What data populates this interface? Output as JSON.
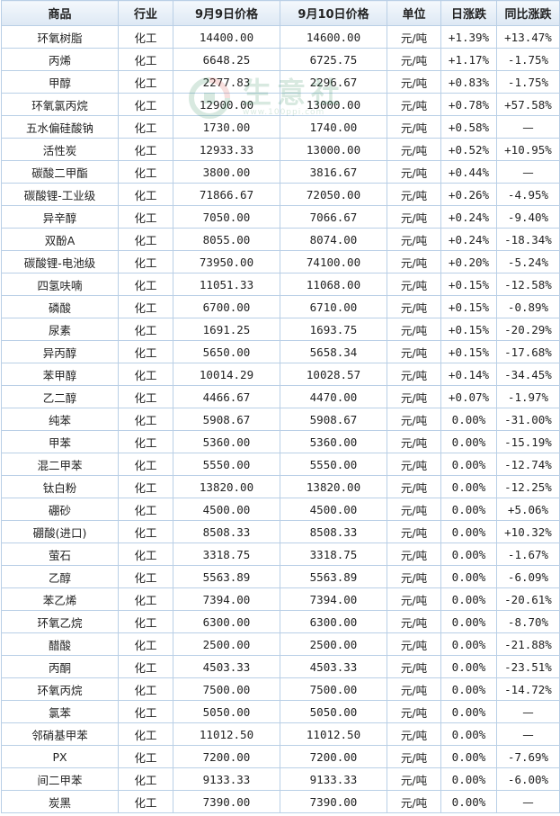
{
  "table": {
    "headers": {
      "name": "商品",
      "industry": "行业",
      "price_prev": "9月9日价格",
      "price_curr": "9月10日价格",
      "unit": "单位",
      "daily_change": "日涨跌",
      "yoy_change": "同比涨跌"
    },
    "rows": [
      {
        "name": "环氧树脂",
        "industry": "化工",
        "prev": "14400.00",
        "curr": "14600.00",
        "unit": "元/吨",
        "daily": "+1.39%",
        "daily_dir": "up",
        "yoy": "+13.47%",
        "yoy_dir": "up"
      },
      {
        "name": "丙烯",
        "industry": "化工",
        "prev": "6648.25",
        "curr": "6725.75",
        "unit": "元/吨",
        "daily": "+1.17%",
        "daily_dir": "up",
        "yoy": "-1.75%",
        "yoy_dir": "down"
      },
      {
        "name": "甲醇",
        "industry": "化工",
        "prev": "2277.83",
        "curr": "2296.67",
        "unit": "元/吨",
        "daily": "+0.83%",
        "daily_dir": "up",
        "yoy": "-1.75%",
        "yoy_dir": "down"
      },
      {
        "name": "环氧氯丙烷",
        "industry": "化工",
        "prev": "12900.00",
        "curr": "13000.00",
        "unit": "元/吨",
        "daily": "+0.78%",
        "daily_dir": "up",
        "yoy": "+57.58%",
        "yoy_dir": "up"
      },
      {
        "name": "五水偏硅酸钠",
        "industry": "化工",
        "prev": "1730.00",
        "curr": "1740.00",
        "unit": "元/吨",
        "daily": "+0.58%",
        "daily_dir": "up",
        "yoy": "—",
        "yoy_dir": "none"
      },
      {
        "name": "活性炭",
        "industry": "化工",
        "prev": "12933.33",
        "curr": "13000.00",
        "unit": "元/吨",
        "daily": "+0.52%",
        "daily_dir": "up",
        "yoy": "+10.95%",
        "yoy_dir": "up"
      },
      {
        "name": "碳酸二甲酯",
        "industry": "化工",
        "prev": "3800.00",
        "curr": "3816.67",
        "unit": "元/吨",
        "daily": "+0.44%",
        "daily_dir": "up",
        "yoy": "—",
        "yoy_dir": "none"
      },
      {
        "name": "碳酸锂-工业级",
        "industry": "化工",
        "prev": "71866.67",
        "curr": "72050.00",
        "unit": "元/吨",
        "daily": "+0.26%",
        "daily_dir": "up",
        "yoy": "-4.95%",
        "yoy_dir": "down"
      },
      {
        "name": "异辛醇",
        "industry": "化工",
        "prev": "7050.00",
        "curr": "7066.67",
        "unit": "元/吨",
        "daily": "+0.24%",
        "daily_dir": "up",
        "yoy": "-9.40%",
        "yoy_dir": "down"
      },
      {
        "name": "双酚A",
        "industry": "化工",
        "prev": "8055.00",
        "curr": "8074.00",
        "unit": "元/吨",
        "daily": "+0.24%",
        "daily_dir": "up",
        "yoy": "-18.34%",
        "yoy_dir": "down"
      },
      {
        "name": "碳酸锂-电池级",
        "industry": "化工",
        "prev": "73950.00",
        "curr": "74100.00",
        "unit": "元/吨",
        "daily": "+0.20%",
        "daily_dir": "up",
        "yoy": "-5.24%",
        "yoy_dir": "down"
      },
      {
        "name": "四氢呋喃",
        "industry": "化工",
        "prev": "11051.33",
        "curr": "11068.00",
        "unit": "元/吨",
        "daily": "+0.15%",
        "daily_dir": "up",
        "yoy": "-12.58%",
        "yoy_dir": "down"
      },
      {
        "name": "磷酸",
        "industry": "化工",
        "prev": "6700.00",
        "curr": "6710.00",
        "unit": "元/吨",
        "daily": "+0.15%",
        "daily_dir": "up",
        "yoy": "-0.89%",
        "yoy_dir": "down"
      },
      {
        "name": "尿素",
        "industry": "化工",
        "prev": "1691.25",
        "curr": "1693.75",
        "unit": "元/吨",
        "daily": "+0.15%",
        "daily_dir": "up",
        "yoy": "-20.29%",
        "yoy_dir": "down"
      },
      {
        "name": "异丙醇",
        "industry": "化工",
        "prev": "5650.00",
        "curr": "5658.34",
        "unit": "元/吨",
        "daily": "+0.15%",
        "daily_dir": "up",
        "yoy": "-17.68%",
        "yoy_dir": "down"
      },
      {
        "name": "苯甲醇",
        "industry": "化工",
        "prev": "10014.29",
        "curr": "10028.57",
        "unit": "元/吨",
        "daily": "+0.14%",
        "daily_dir": "up",
        "yoy": "-34.45%",
        "yoy_dir": "down"
      },
      {
        "name": "乙二醇",
        "industry": "化工",
        "prev": "4466.67",
        "curr": "4470.00",
        "unit": "元/吨",
        "daily": "+0.07%",
        "daily_dir": "up",
        "yoy": "-1.97%",
        "yoy_dir": "down"
      },
      {
        "name": "纯苯",
        "industry": "化工",
        "prev": "5908.67",
        "curr": "5908.67",
        "unit": "元/吨",
        "daily": "0.00%",
        "daily_dir": "flat",
        "yoy": "-31.00%",
        "yoy_dir": "down"
      },
      {
        "name": "甲苯",
        "industry": "化工",
        "prev": "5360.00",
        "curr": "5360.00",
        "unit": "元/吨",
        "daily": "0.00%",
        "daily_dir": "flat",
        "yoy": "-15.19%",
        "yoy_dir": "down"
      },
      {
        "name": "混二甲苯",
        "industry": "化工",
        "prev": "5550.00",
        "curr": "5550.00",
        "unit": "元/吨",
        "daily": "0.00%",
        "daily_dir": "flat",
        "yoy": "-12.74%",
        "yoy_dir": "down"
      },
      {
        "name": "钛白粉",
        "industry": "化工",
        "prev": "13820.00",
        "curr": "13820.00",
        "unit": "元/吨",
        "daily": "0.00%",
        "daily_dir": "flat",
        "yoy": "-12.25%",
        "yoy_dir": "down"
      },
      {
        "name": "硼砂",
        "industry": "化工",
        "prev": "4500.00",
        "curr": "4500.00",
        "unit": "元/吨",
        "daily": "0.00%",
        "daily_dir": "flat",
        "yoy": "+5.06%",
        "yoy_dir": "up"
      },
      {
        "name": "硼酸(进口)",
        "industry": "化工",
        "prev": "8508.33",
        "curr": "8508.33",
        "unit": "元/吨",
        "daily": "0.00%",
        "daily_dir": "flat",
        "yoy": "+10.32%",
        "yoy_dir": "up"
      },
      {
        "name": "萤石",
        "industry": "化工",
        "prev": "3318.75",
        "curr": "3318.75",
        "unit": "元/吨",
        "daily": "0.00%",
        "daily_dir": "flat",
        "yoy": "-1.67%",
        "yoy_dir": "down"
      },
      {
        "name": "乙醇",
        "industry": "化工",
        "prev": "5563.89",
        "curr": "5563.89",
        "unit": "元/吨",
        "daily": "0.00%",
        "daily_dir": "flat",
        "yoy": "-6.09%",
        "yoy_dir": "down"
      },
      {
        "name": "苯乙烯",
        "industry": "化工",
        "prev": "7394.00",
        "curr": "7394.00",
        "unit": "元/吨",
        "daily": "0.00%",
        "daily_dir": "flat",
        "yoy": "-20.61%",
        "yoy_dir": "down"
      },
      {
        "name": "环氧乙烷",
        "industry": "化工",
        "prev": "6300.00",
        "curr": "6300.00",
        "unit": "元/吨",
        "daily": "0.00%",
        "daily_dir": "flat",
        "yoy": "-8.70%",
        "yoy_dir": "down"
      },
      {
        "name": "醋酸",
        "industry": "化工",
        "prev": "2500.00",
        "curr": "2500.00",
        "unit": "元/吨",
        "daily": "0.00%",
        "daily_dir": "flat",
        "yoy": "-21.88%",
        "yoy_dir": "down"
      },
      {
        "name": "丙酮",
        "industry": "化工",
        "prev": "4503.33",
        "curr": "4503.33",
        "unit": "元/吨",
        "daily": "0.00%",
        "daily_dir": "flat",
        "yoy": "-23.51%",
        "yoy_dir": "down"
      },
      {
        "name": "环氧丙烷",
        "industry": "化工",
        "prev": "7500.00",
        "curr": "7500.00",
        "unit": "元/吨",
        "daily": "0.00%",
        "daily_dir": "flat",
        "yoy": "-14.72%",
        "yoy_dir": "down"
      },
      {
        "name": "氯苯",
        "industry": "化工",
        "prev": "5050.00",
        "curr": "5050.00",
        "unit": "元/吨",
        "daily": "0.00%",
        "daily_dir": "flat",
        "yoy": "—",
        "yoy_dir": "none"
      },
      {
        "name": "邻硝基甲苯",
        "industry": "化工",
        "prev": "11012.50",
        "curr": "11012.50",
        "unit": "元/吨",
        "daily": "0.00%",
        "daily_dir": "flat",
        "yoy": "—",
        "yoy_dir": "none"
      },
      {
        "name": "PX",
        "industry": "化工",
        "prev": "7200.00",
        "curr": "7200.00",
        "unit": "元/吨",
        "daily": "0.00%",
        "daily_dir": "flat",
        "yoy": "-7.69%",
        "yoy_dir": "down"
      },
      {
        "name": "间二甲苯",
        "industry": "化工",
        "prev": "9133.33",
        "curr": "9133.33",
        "unit": "元/吨",
        "daily": "0.00%",
        "daily_dir": "flat",
        "yoy": "-6.00%",
        "yoy_dir": "down"
      },
      {
        "name": "炭黑",
        "industry": "化工",
        "prev": "7390.00",
        "curr": "7390.00",
        "unit": "元/吨",
        "daily": "0.00%",
        "daily_dir": "flat",
        "yoy": "—",
        "yoy_dir": "none"
      }
    ]
  },
  "watermark": {
    "name": "生意社",
    "url": "www.100ppi.com"
  },
  "colors": {
    "up": "#e60000",
    "down": "#008800",
    "name_link": "#1a4d99",
    "border": "#b9cfe6",
    "header_bg": "#dde8f4",
    "watermark": "#2e8b57"
  }
}
